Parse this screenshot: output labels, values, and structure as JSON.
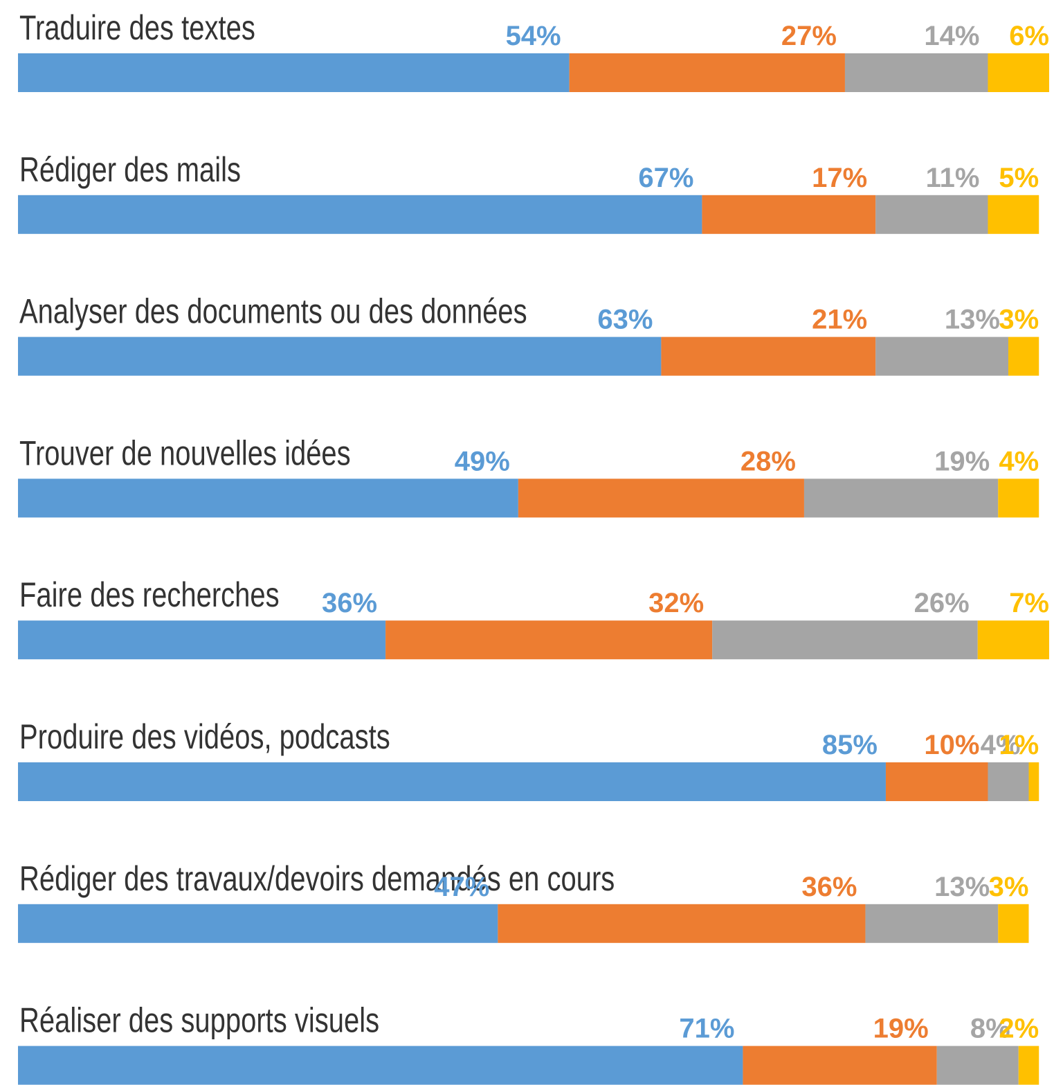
{
  "chart_data": {
    "type": "stacked-bar-horizontal",
    "categories": [
      "Traduire des textes",
      "Rédiger des mails",
      "Analyser des documents ou des données",
      "Trouver de nouvelles idées",
      "Faire des recherches",
      "Produire des vidéos, podcasts",
      "Rédiger des travaux/devoirs demandés en cours",
      "Réaliser des supports visuels"
    ],
    "series": [
      {
        "color": "#5b9bd5",
        "values": [
          54,
          67,
          63,
          49,
          36,
          85,
          47,
          71
        ],
        "value_labels": [
          "54%",
          "67%",
          "63%",
          "49%",
          "36%",
          "85%",
          "47%",
          "71%"
        ]
      },
      {
        "color": "#ed7d31",
        "values": [
          27,
          17,
          21,
          28,
          32,
          10,
          36,
          19
        ],
        "value_labels": [
          "27%",
          "17%",
          "21%",
          "28%",
          "32%",
          "10%",
          "36%",
          "19%"
        ]
      },
      {
        "color": "#a5a5a5",
        "values": [
          14,
          11,
          13,
          19,
          26,
          4,
          13,
          8
        ],
        "value_labels": [
          "14%",
          "11%",
          "13%",
          "19%",
          "26%",
          "4%",
          "13%",
          "8%"
        ]
      },
      {
        "color": "#ffc000",
        "values": [
          6,
          5,
          3,
          4,
          7,
          1,
          3,
          2
        ],
        "value_labels": [
          "6%",
          "5%",
          "3%",
          "4%",
          "7%",
          "1%",
          "3%",
          "2%"
        ]
      }
    ],
    "xlim": [
      0,
      101
    ]
  }
}
